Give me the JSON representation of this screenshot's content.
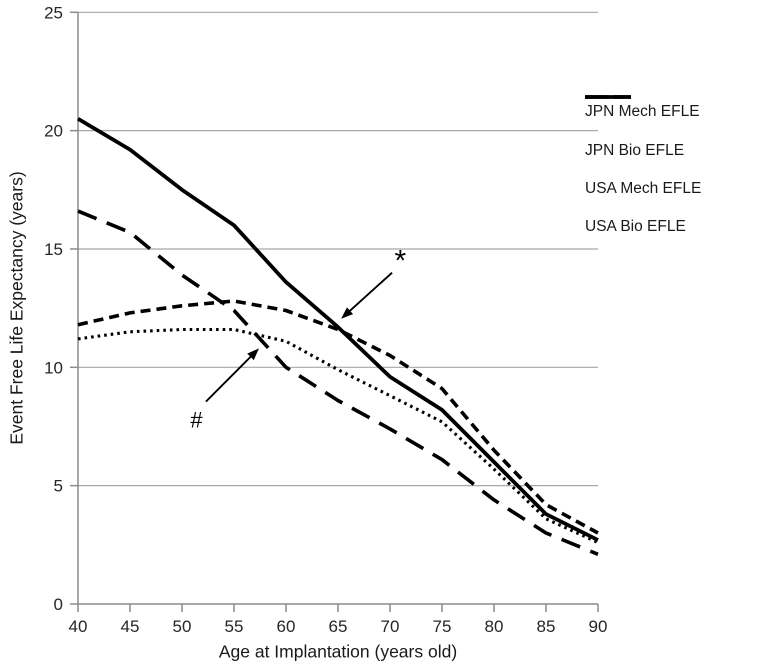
{
  "chart_data": {
    "type": "line",
    "title": "",
    "xlabel": "Age at Implantation (years old)",
    "ylabel": "Event Free Life Expectancy (years)",
    "xlim": [
      40,
      90
    ],
    "ylim": [
      0,
      25
    ],
    "xticks": [
      40,
      45,
      50,
      55,
      60,
      65,
      70,
      75,
      80,
      85,
      90
    ],
    "yticks": [
      0,
      5,
      10,
      15,
      20,
      25
    ],
    "grid": "horizontal-only",
    "legend_position": "right-outside",
    "x": [
      40,
      45,
      50,
      55,
      60,
      65,
      70,
      75,
      80,
      85,
      90
    ],
    "series": [
      {
        "name": "JPN Mech EFLE",
        "style": "solid",
        "color": "#000000",
        "values": [
          20.5,
          19.2,
          17.5,
          16.0,
          13.6,
          11.7,
          9.6,
          8.2,
          6.0,
          3.8,
          2.7
        ]
      },
      {
        "name": "JPN Bio EFLE",
        "style": "dashed",
        "color": "#000000",
        "values": [
          11.8,
          12.3,
          12.6,
          12.8,
          12.4,
          11.6,
          10.5,
          9.1,
          6.5,
          4.2,
          3.0
        ]
      },
      {
        "name": "USA Mech EFLE",
        "style": "long-dash",
        "color": "#000000",
        "values": [
          16.6,
          15.7,
          13.9,
          12.4,
          10.0,
          8.6,
          7.4,
          6.1,
          4.4,
          3.0,
          2.1
        ]
      },
      {
        "name": "USA Bio EFLE",
        "style": "dotted",
        "color": "#000000",
        "values": [
          11.2,
          11.5,
          11.6,
          11.6,
          11.1,
          9.9,
          8.8,
          7.7,
          5.7,
          3.6,
          2.6
        ]
      }
    ],
    "annotations": [
      {
        "symbol": "*",
        "label_age": 71.0,
        "label_value": 14.6,
        "arrow_from": [
          70.2,
          14.0
        ],
        "arrow_to": [
          65.3,
          12.05
        ]
      },
      {
        "symbol": "#",
        "label_age": 51.4,
        "label_value": 7.8,
        "arrow_from": [
          52.3,
          8.55
        ],
        "arrow_to": [
          57.4,
          10.8
        ]
      }
    ]
  },
  "colors": {
    "series_line": "#000000",
    "gridline": "#a8a8a8",
    "axis": "#8c8c8c",
    "tick_label": "#262626",
    "annotation": "#000000"
  }
}
